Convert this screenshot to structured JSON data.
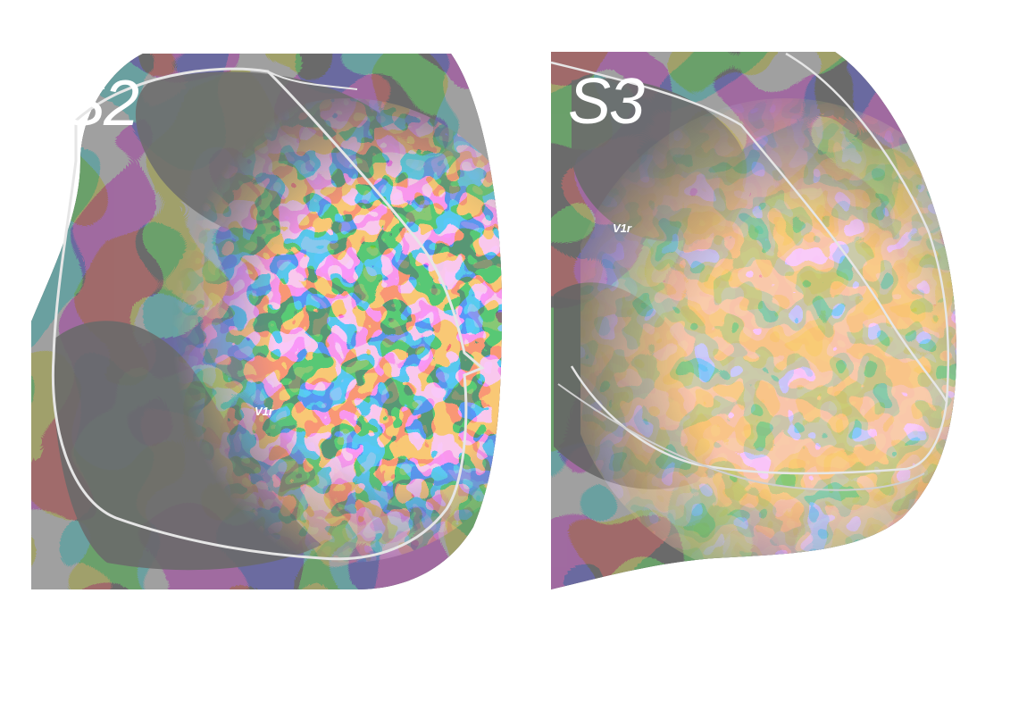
{
  "panels": [
    {
      "id": "s2",
      "label": "S2",
      "roi_label": "V1r"
    },
    {
      "id": "s3",
      "label": "S3",
      "roi_label": "V1r"
    }
  ],
  "colors": {
    "background": "#ffffff",
    "cortex_dark": "#2b2b2b",
    "cortex_light": "#6b6b6b",
    "activation_red": "#e32a0c",
    "activation_orange": "#f2962e",
    "activation_blue": "#1a4fd8",
    "activation_lightblue": "#3f9cf0",
    "roi_outline": "#e6e6e6"
  }
}
